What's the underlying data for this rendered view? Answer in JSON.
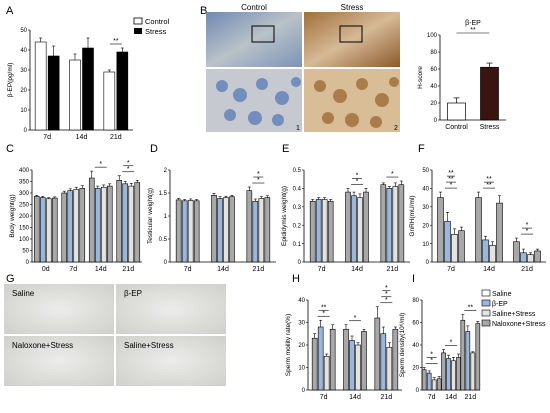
{
  "colors": {
    "white_bar": "#ffffff",
    "black_bar": "#000000",
    "stress_bar": "#3a1410",
    "control_bar": "#ffffff",
    "gray_bar": "#a8a8a8",
    "blue_bar": "#9bb7dc",
    "light_bar": "#e3e3e3"
  },
  "panel_letters": [
    "A",
    "B",
    "C",
    "D",
    "E",
    "F",
    "G",
    "H",
    "I"
  ],
  "micro": {
    "control_label": "Control",
    "stress_label": "Stress",
    "sub1": "1",
    "sub2": "2",
    "g_labels": [
      "Saline",
      "β-EP",
      "Naloxone+Stress",
      "Saline+Stress"
    ]
  },
  "legend_A": [
    "Control",
    "Stress"
  ],
  "legend_HI": [
    "Saline",
    "β-EP",
    "Saline+Stress",
    "Naloxone+Stress"
  ],
  "chart_data": [
    {
      "panel": "A",
      "type": "bar",
      "categories": [
        "7d",
        "14d",
        "21d"
      ],
      "ylabel": "β-EP(pg/ml)",
      "ylim": [
        0,
        50
      ],
      "yticks": [
        0,
        10,
        20,
        30,
        40,
        50
      ],
      "series": [
        {
          "name": "Control",
          "values": [
            44,
            35,
            29
          ],
          "err": [
            2,
            3,
            1
          ]
        },
        {
          "name": "Stress",
          "values": [
            37,
            41,
            39
          ],
          "err": [
            5,
            5,
            2
          ]
        }
      ],
      "annotations": [
        {
          "category": "21d",
          "text": "**"
        }
      ]
    },
    {
      "panel": "B",
      "type": "bar",
      "title": "β-EP",
      "categories": [
        "Control",
        "Stress"
      ],
      "ylabel": "H-score",
      "ylim": [
        0,
        100
      ],
      "yticks": [
        0,
        20,
        40,
        60,
        80,
        100
      ],
      "series": [
        {
          "values": [
            20,
            62
          ],
          "err": [
            6,
            5
          ]
        }
      ],
      "annotations": [
        {
          "text": "**"
        }
      ]
    },
    {
      "panel": "C",
      "type": "bar",
      "categories": [
        "0d",
        "7d",
        "14d",
        "21d"
      ],
      "ylabel": "Body weight(g)",
      "ylim": [
        0,
        400
      ],
      "yticks": [
        0,
        50,
        100,
        150,
        200,
        250,
        300,
        350,
        400
      ],
      "series": [
        {
          "values": [
            285,
            300,
            365,
            355
          ],
          "err": [
            5,
            8,
            30,
            20
          ]
        },
        {
          "values": [
            280,
            310,
            320,
            340
          ],
          "err": [
            5,
            8,
            10,
            10
          ]
        },
        {
          "values": [
            275,
            315,
            325,
            330
          ],
          "err": [
            5,
            10,
            10,
            12
          ]
        },
        {
          "values": [
            278,
            320,
            330,
            345
          ],
          "err": [
            5,
            12,
            10,
            10
          ]
        }
      ],
      "annotations": [
        {
          "category": "14d",
          "text": "*"
        },
        {
          "category": "21d",
          "text": "*"
        },
        {
          "category": "21d",
          "text": "*"
        }
      ]
    },
    {
      "panel": "D",
      "type": "bar",
      "categories": [
        "7d",
        "14d",
        "21d"
      ],
      "ylabel": "Testicular weight(g)",
      "ylim": [
        0,
        2.0
      ],
      "yticks": [
        0.0,
        0.5,
        1.0,
        1.5,
        2.0
      ],
      "series": [
        {
          "values": [
            1.35,
            1.45,
            1.55
          ],
          "err": [
            0.03,
            0.04,
            0.08
          ]
        },
        {
          "values": [
            1.33,
            1.38,
            1.32
          ],
          "err": [
            0.03,
            0.04,
            0.05
          ]
        },
        {
          "values": [
            1.34,
            1.4,
            1.38
          ],
          "err": [
            0.03,
            0.03,
            0.04
          ]
        },
        {
          "values": [
            1.33,
            1.42,
            1.4
          ],
          "err": [
            0.03,
            0.03,
            0.04
          ]
        }
      ],
      "annotations": [
        {
          "category": "21d",
          "text": "*"
        },
        {
          "category": "21d",
          "text": "*"
        }
      ]
    },
    {
      "panel": "E",
      "type": "bar",
      "categories": [
        "7d",
        "14d",
        "21d"
      ],
      "ylabel": "Epididymis weight(g)",
      "ylim": [
        0,
        0.5
      ],
      "yticks": [
        0.0,
        0.1,
        0.2,
        0.3,
        0.4,
        0.5
      ],
      "series": [
        {
          "values": [
            0.33,
            0.38,
            0.42
          ],
          "err": [
            0.01,
            0.02,
            0.01
          ]
        },
        {
          "values": [
            0.34,
            0.36,
            0.4
          ],
          "err": [
            0.01,
            0.02,
            0.01
          ]
        },
        {
          "values": [
            0.34,
            0.35,
            0.41
          ],
          "err": [
            0.01,
            0.02,
            0.02
          ]
        },
        {
          "values": [
            0.33,
            0.38,
            0.42
          ],
          "err": [
            0.01,
            0.02,
            0.02
          ]
        }
      ],
      "annotations": [
        {
          "category": "14d",
          "text": "*"
        },
        {
          "category": "14d",
          "text": "*"
        },
        {
          "category": "21d",
          "text": "*"
        }
      ]
    },
    {
      "panel": "F",
      "type": "bar",
      "categories": [
        "7d",
        "14d",
        "21d"
      ],
      "ylabel": "GnRH(mU/ml)",
      "ylim": [
        0,
        50
      ],
      "yticks": [
        0,
        10,
        20,
        30,
        40,
        50
      ],
      "series": [
        {
          "values": [
            35,
            35,
            11
          ],
          "err": [
            3,
            3,
            2
          ]
        },
        {
          "values": [
            22,
            12,
            5
          ],
          "err": [
            5,
            2,
            2
          ]
        },
        {
          "values": [
            15,
            9,
            4
          ],
          "err": [
            3,
            2,
            1
          ]
        },
        {
          "values": [
            17,
            32,
            6
          ],
          "err": [
            2,
            4,
            1
          ]
        }
      ],
      "annotations": [
        {
          "category": "7d",
          "text": "*"
        },
        {
          "category": "7d",
          "text": "**"
        },
        {
          "category": "7d",
          "text": "**"
        },
        {
          "category": "14d",
          "text": "**"
        },
        {
          "category": "14d",
          "text": "**"
        },
        {
          "category": "21d",
          "text": "*"
        },
        {
          "category": "21d",
          "text": "*"
        }
      ]
    },
    {
      "panel": "H",
      "type": "bar",
      "categories": [
        "7d",
        "14d",
        "21d"
      ],
      "ylabel": "Sperm moility rate(%)",
      "ylim": [
        0,
        40
      ],
      "yticks": [
        0,
        10,
        20,
        30,
        40
      ],
      "series": [
        {
          "name": "Saline",
          "values": [
            23,
            27,
            32
          ],
          "err": [
            2,
            2,
            5
          ]
        },
        {
          "name": "β-EP",
          "values": [
            28,
            22,
            25
          ],
          "err": [
            3,
            2,
            3
          ]
        },
        {
          "name": "Saline+Stress",
          "values": [
            15,
            20,
            19
          ],
          "err": [
            1,
            1,
            2
          ]
        },
        {
          "name": "Naloxone+Stress",
          "values": [
            27,
            26,
            27
          ],
          "err": [
            2,
            1,
            1
          ]
        }
      ],
      "annotations": [
        {
          "category": "7d",
          "text": "*"
        },
        {
          "category": "7d",
          "text": "**"
        },
        {
          "category": "14d",
          "text": "*"
        },
        {
          "category": "21d",
          "text": "*"
        },
        {
          "category": "21d",
          "text": "*"
        },
        {
          "category": "21d",
          "text": "*"
        }
      ]
    },
    {
      "panel": "I",
      "type": "bar",
      "categories": [
        "7d",
        "14d",
        "21d"
      ],
      "ylabel": "Sperm density(10⁶/ml)",
      "ylim": [
        0,
        80
      ],
      "yticks": [
        0,
        20,
        40,
        60,
        80
      ],
      "series": [
        {
          "name": "Saline",
          "values": [
            18,
            33,
            62
          ],
          "err": [
            2,
            3,
            5
          ]
        },
        {
          "name": "β-EP",
          "values": [
            15,
            28,
            52
          ],
          "err": [
            2,
            3,
            5
          ]
        },
        {
          "name": "Saline+Stress",
          "values": [
            9,
            26,
            33
          ],
          "err": [
            2,
            3,
            1
          ]
        },
        {
          "name": "Naloxone+Stress",
          "values": [
            10,
            29,
            59
          ],
          "err": [
            2,
            3,
            2
          ]
        }
      ],
      "annotations": [
        {
          "category": "7d",
          "text": "*"
        },
        {
          "category": "7d",
          "text": "*"
        },
        {
          "category": "14d",
          "text": "*"
        },
        {
          "category": "21d",
          "text": "**"
        }
      ]
    }
  ]
}
